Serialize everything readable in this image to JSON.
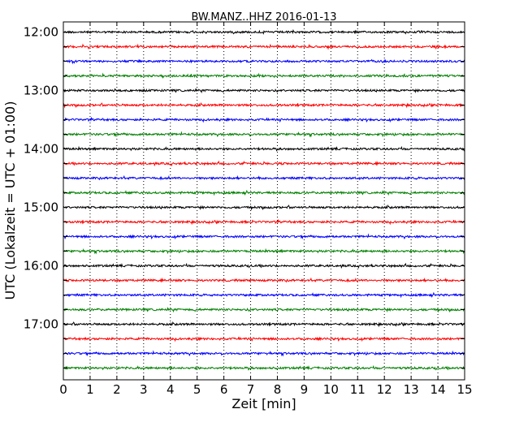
{
  "chart_data": {
    "type": "line",
    "title": "BW.MANZ..HHZ 2016-01-13",
    "xlabel": "Zeit  [min]",
    "ylabel": "UTC (Lokalzeit = UTC + 01:00)",
    "xlim": [
      0,
      15
    ],
    "x_ticks": [
      "0",
      "1",
      "2",
      "3",
      "4",
      "5",
      "6",
      "7",
      "8",
      "9",
      "10",
      "11",
      "12",
      "13",
      "14",
      "15"
    ],
    "y_ticks": [
      "12:00",
      "13:00",
      "14:00",
      "15:00",
      "16:00",
      "17:00"
    ],
    "grid": "vertical dotted at each minute",
    "color_cycle": [
      "#000000",
      "#ff0000",
      "#0000ff",
      "#008000"
    ],
    "series": [
      {
        "start": "12:00",
        "color": "#000000"
      },
      {
        "start": "12:15",
        "color": "#ff0000"
      },
      {
        "start": "12:30",
        "color": "#0000ff"
      },
      {
        "start": "12:45",
        "color": "#008000"
      },
      {
        "start": "13:00",
        "color": "#000000"
      },
      {
        "start": "13:15",
        "color": "#ff0000"
      },
      {
        "start": "13:30",
        "color": "#0000ff"
      },
      {
        "start": "13:45",
        "color": "#008000"
      },
      {
        "start": "14:00",
        "color": "#000000"
      },
      {
        "start": "14:15",
        "color": "#ff0000"
      },
      {
        "start": "14:30",
        "color": "#0000ff"
      },
      {
        "start": "14:45",
        "color": "#008000"
      },
      {
        "start": "15:00",
        "color": "#000000"
      },
      {
        "start": "15:15",
        "color": "#ff0000"
      },
      {
        "start": "15:30",
        "color": "#0000ff"
      },
      {
        "start": "15:45",
        "color": "#008000"
      },
      {
        "start": "16:00",
        "color": "#000000"
      },
      {
        "start": "16:15",
        "color": "#ff0000"
      },
      {
        "start": "16:30",
        "color": "#0000ff"
      },
      {
        "start": "16:45",
        "color": "#008000"
      },
      {
        "start": "17:00",
        "color": "#000000"
      },
      {
        "start": "17:15",
        "color": "#ff0000"
      },
      {
        "start": "17:30",
        "color": "#0000ff"
      },
      {
        "start": "17:45",
        "color": "#008000"
      }
    ]
  }
}
